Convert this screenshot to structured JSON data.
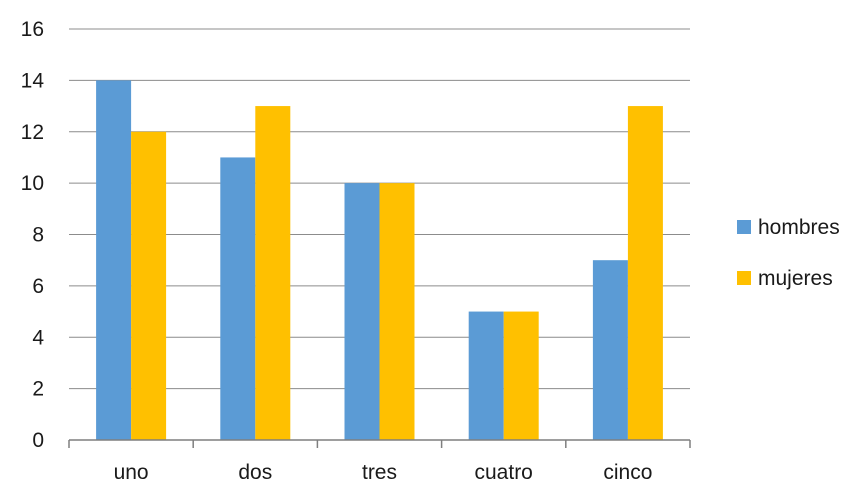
{
  "chart_data": {
    "type": "bar",
    "categories": [
      "uno",
      "dos",
      "tres",
      "cuatro",
      "cinco"
    ],
    "series": [
      {
        "name": "hombres",
        "values": [
          14,
          11,
          10,
          5,
          7
        ],
        "color": "#5B9BD5"
      },
      {
        "name": "mujeres",
        "values": [
          12,
          13,
          10,
          5,
          13
        ],
        "color": "#FFC000"
      }
    ],
    "ylim": [
      0,
      16
    ],
    "yticks": [
      "0",
      "2",
      "4",
      "6",
      "8",
      "10",
      "12",
      "14",
      "16"
    ],
    "grid": true,
    "legend": "right",
    "gridline_color": "#8C8C8C",
    "axis_color": "#7F7F7F"
  }
}
